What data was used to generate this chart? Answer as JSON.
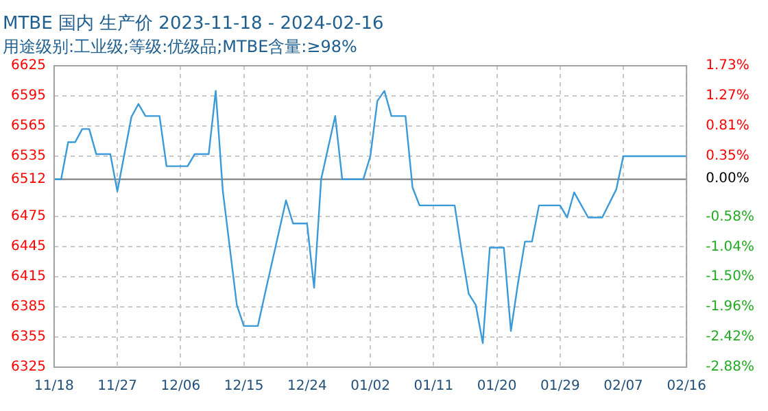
{
  "chart_data": {
    "type": "line",
    "title": "MTBE 国内 生产价 2023-11-18 - 2024-02-16",
    "subtitle": "用途级别:工业级;等级:优级品;MTBE含量:≥98%",
    "x": [
      "2023-11-18",
      "2023-11-19",
      "2023-11-20",
      "2023-11-21",
      "2023-11-22",
      "2023-11-23",
      "2023-11-24",
      "2023-11-26",
      "2023-11-27",
      "2023-11-29",
      "2023-11-30",
      "2023-12-01",
      "2023-12-03",
      "2023-12-04",
      "2023-12-07",
      "2023-12-08",
      "2023-12-10",
      "2023-12-11",
      "2023-12-12",
      "2023-12-14",
      "2023-12-15",
      "2023-12-17",
      "2023-12-18",
      "2023-12-21",
      "2023-12-22",
      "2023-12-24",
      "2023-12-25",
      "2023-12-26",
      "2023-12-28",
      "2023-12-29",
      "2024-01-01",
      "2024-01-02",
      "2024-01-03",
      "2024-01-04",
      "2024-01-05",
      "2024-01-07",
      "2024-01-08",
      "2024-01-09",
      "2024-01-14",
      "2024-01-15",
      "2024-01-16",
      "2024-01-17",
      "2024-01-18",
      "2024-01-19",
      "2024-01-21",
      "2024-01-22",
      "2024-01-23",
      "2024-01-24",
      "2024-01-25",
      "2024-01-26",
      "2024-01-29",
      "2024-01-30",
      "2024-01-31",
      "2024-02-02",
      "2024-02-04",
      "2024-02-06",
      "2024-02-07",
      "2024-02-16"
    ],
    "series": [
      {
        "color": "#3a9ad9",
        "values": [
          6512,
          6512,
          6549,
          6549,
          6562,
          6562,
          6537,
          6537,
          6500,
          6574,
          6587,
          6575,
          6575,
          6525,
          6525,
          6537,
          6537,
          6600,
          6501,
          6387,
          6366,
          6366,
          6398,
          6491,
          6468,
          6468,
          6404,
          6512,
          6575,
          6512,
          6512,
          6535,
          6590,
          6600,
          6575,
          6575,
          6504,
          6486,
          6486,
          6440,
          6398,
          6387,
          6349,
          6444,
          6444,
          6361,
          6408,
          6450,
          6450,
          6486,
          6486,
          6474,
          6499,
          6474,
          6474,
          6502,
          6535,
          6535
        ]
      }
    ],
    "xlim": [
      "2023-11-18",
      "2024-02-16"
    ],
    "xticks": [
      {
        "value": "2023-11-18",
        "label": "11/18"
      },
      {
        "value": "2023-11-27",
        "label": "11/27"
      },
      {
        "value": "2023-12-06",
        "label": "12/06"
      },
      {
        "value": "2023-12-15",
        "label": "12/15"
      },
      {
        "value": "2023-12-24",
        "label": "12/24"
      },
      {
        "value": "2024-01-02",
        "label": "01/02"
      },
      {
        "value": "2024-01-11",
        "label": "01/11"
      },
      {
        "value": "2024-01-20",
        "label": "01/20"
      },
      {
        "value": "2024-01-29",
        "label": "01/29"
      },
      {
        "value": "2024-02-07",
        "label": "02/07"
      },
      {
        "value": "2024-02-16",
        "label": "02/16"
      }
    ],
    "ylim": [
      6325,
      6625
    ],
    "yticks": [
      6325,
      6355,
      6385,
      6415,
      6445,
      6475,
      6512,
      6535,
      6565,
      6595,
      6625
    ],
    "y2lim": [
      -2.88,
      1.73
    ],
    "y2ticks": [
      {
        "value": -2.88,
        "label": "-2.88%"
      },
      {
        "value": -2.42,
        "label": "-2.42%"
      },
      {
        "value": -1.96,
        "label": "-1.96%"
      },
      {
        "value": -1.5,
        "label": "-1.50%"
      },
      {
        "value": -1.04,
        "label": "-1.04%"
      },
      {
        "value": -0.58,
        "label": "-0.58%"
      },
      {
        "value": 0,
        "label": "0.00%"
      },
      {
        "value": 0.35,
        "label": "0.35%"
      },
      {
        "value": 0.81,
        "label": "0.81%"
      },
      {
        "value": 1.27,
        "label": "1.27%"
      },
      {
        "value": 1.73,
        "label": "1.73%"
      }
    ],
    "ref_lines": [
      {
        "axis": "y",
        "value": 6512,
        "color": "#909090"
      }
    ],
    "grid": true,
    "legend": false,
    "marker": "none",
    "line_style": "solid"
  }
}
